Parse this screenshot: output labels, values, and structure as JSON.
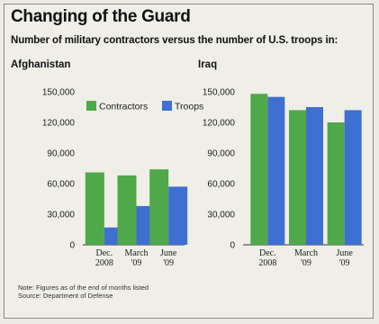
{
  "title": "Changing of the Guard",
  "subtitle": "Number of military contractors versus the number of U.S. troops in:",
  "note": "Note: Figures as of the end of months listed",
  "source": "Source: Department of Defense",
  "colors": {
    "contractors": "#4fa84a",
    "troops": "#3f6fd0"
  },
  "chart_data": [
    {
      "type": "bar",
      "title": "Afghanistan",
      "categories": [
        "Dec. 2008",
        "March '09",
        "June '09"
      ],
      "category_lines": [
        [
          "Dec.",
          "2008"
        ],
        [
          "March",
          "'09"
        ],
        [
          "June",
          "'09"
        ]
      ],
      "series": [
        {
          "name": "Contractors",
          "values": [
            71000,
            68000,
            74000
          ]
        },
        {
          "name": "Troops",
          "values": [
            17000,
            38000,
            57000
          ]
        }
      ],
      "ylim": [
        0,
        150000
      ],
      "yticks": [
        0,
        30000,
        60000,
        90000,
        120000,
        150000
      ],
      "ytick_labels": [
        "0",
        "30,000",
        "60,000",
        "90,000",
        "120,000",
        "150,000"
      ],
      "legend": "inside top",
      "grid": false
    },
    {
      "type": "bar",
      "title": "Iraq",
      "categories": [
        "Dec. 2008",
        "March '09",
        "June '09"
      ],
      "category_lines": [
        [
          "Dec.",
          "2008"
        ],
        [
          "March",
          "'09"
        ],
        [
          "June",
          "'09"
        ]
      ],
      "series": [
        {
          "name": "Contractors",
          "values": [
            148000,
            132000,
            120000
          ]
        },
        {
          "name": "Troops",
          "values": [
            145000,
            135000,
            132000
          ]
        }
      ],
      "ylim": [
        0,
        150000
      ],
      "yticks": [
        0,
        30000,
        60000,
        90000,
        120000,
        150000
      ],
      "ytick_labels": [
        "0",
        "30,000",
        "60,000",
        "90,000",
        "120,000",
        "150,000"
      ],
      "grid": false
    }
  ]
}
